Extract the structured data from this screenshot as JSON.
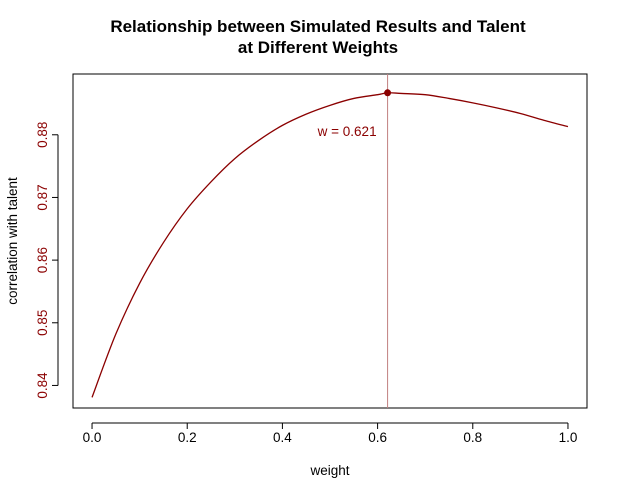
{
  "chart_data": {
    "type": "line",
    "title_lines": [
      "Relationship between Simulated Results and Talent",
      "at Different Weights"
    ],
    "xlabel": "weight",
    "ylabel": "correlation with talent",
    "xlim": [
      -0.04,
      1.04
    ],
    "ylim": [
      0.8364,
      0.8897
    ],
    "x_ticks": [
      0.0,
      0.2,
      0.4,
      0.6,
      0.8,
      1.0
    ],
    "x_tick_labels": [
      "0.0",
      "0.2",
      "0.4",
      "0.6",
      "0.8",
      "1.0"
    ],
    "y_ticks": [
      0.84,
      0.85,
      0.86,
      0.87,
      0.88
    ],
    "y_tick_labels": [
      "0.84",
      "0.85",
      "0.86",
      "0.87",
      "0.88"
    ],
    "series": [
      {
        "color": "#8b0000",
        "x": [
          0.0,
          0.05,
          0.1,
          0.15,
          0.2,
          0.25,
          0.3,
          0.35,
          0.4,
          0.45,
          0.5,
          0.55,
          0.6,
          0.621,
          0.65,
          0.7,
          0.75,
          0.8,
          0.85,
          0.9,
          0.95,
          1.0
        ],
        "y": [
          0.8381,
          0.8482,
          0.8563,
          0.8628,
          0.8682,
          0.8725,
          0.8762,
          0.8791,
          0.8815,
          0.8833,
          0.8847,
          0.8858,
          0.8864,
          0.8867,
          0.8866,
          0.8864,
          0.8858,
          0.8851,
          0.8843,
          0.8834,
          0.8823,
          0.8813
        ]
      }
    ],
    "optimum": {
      "x": 0.621,
      "y": 0.8867,
      "label": "w = 0.621"
    },
    "grid": false,
    "legend": "none",
    "colors": {
      "curve": "#8b0000",
      "point": "#8b0000",
      "vline": "#c08080",
      "annotation": "#8b0000",
      "y_tick_labels": "#8b0000",
      "axes": "#000000"
    }
  }
}
